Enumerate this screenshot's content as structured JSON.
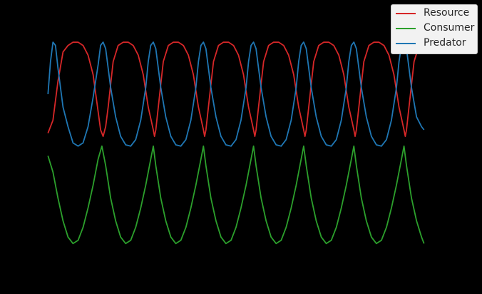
{
  "chart_data": {
    "type": "line",
    "title": "",
    "xlabel": "",
    "ylabel": "",
    "grid": false,
    "legend_position": "top-right",
    "xlim": [
      -30,
      3030
    ],
    "ylim": [
      -0.65,
      2.7
    ],
    "x_ticks": [
      0,
      500,
      1000,
      1500,
      2000,
      2500,
      3000
    ],
    "y_ticks": [
      -0.4,
      0.1,
      0.6,
      1.1,
      1.6,
      2.1,
      2.6
    ],
    "series": [
      {
        "name": "Resource",
        "color": "#d62728",
        "x": [
          0,
          40,
          80,
          120,
          160,
          200,
          240,
          280,
          320,
          360,
          420,
          440,
          460,
          480,
          520,
          560,
          600,
          640,
          680,
          720,
          760,
          800,
          840,
          850,
          860,
          880,
          920,
          960,
          1000,
          1040,
          1080,
          1120,
          1160,
          1200,
          1240,
          1250,
          1260,
          1280,
          1320,
          1360,
          1400,
          1440,
          1480,
          1520,
          1560,
          1600,
          1640,
          1650,
          1660,
          1680,
          1720,
          1760,
          1800,
          1840,
          1880,
          1920,
          1960,
          2000,
          2040,
          2050,
          2060,
          2080,
          2120,
          2160,
          2200,
          2240,
          2280,
          2320,
          2360,
          2400,
          2440,
          2450,
          2460,
          2480,
          2520,
          2560,
          2600,
          2640,
          2680,
          2720,
          2760,
          2800,
          2840,
          2850,
          2860,
          2880,
          2920,
          2960,
          3000
        ],
        "y": [
          1.2,
          1.4,
          2.0,
          2.45,
          2.55,
          2.6,
          2.6,
          2.55,
          2.4,
          2.1,
          1.25,
          1.15,
          1.3,
          1.6,
          2.3,
          2.55,
          2.6,
          2.6,
          2.55,
          2.4,
          2.1,
          1.6,
          1.25,
          1.15,
          1.25,
          1.6,
          2.3,
          2.55,
          2.6,
          2.6,
          2.55,
          2.4,
          2.1,
          1.6,
          1.25,
          1.15,
          1.25,
          1.6,
          2.3,
          2.55,
          2.6,
          2.6,
          2.55,
          2.4,
          2.1,
          1.6,
          1.25,
          1.15,
          1.25,
          1.6,
          2.3,
          2.55,
          2.6,
          2.6,
          2.55,
          2.4,
          2.1,
          1.6,
          1.25,
          1.15,
          1.25,
          1.6,
          2.3,
          2.55,
          2.6,
          2.6,
          2.55,
          2.4,
          2.1,
          1.6,
          1.25,
          1.15,
          1.25,
          1.6,
          2.3,
          2.55,
          2.6,
          2.6,
          2.55,
          2.4,
          2.1,
          1.6,
          1.25,
          1.15,
          1.25,
          1.6,
          2.3,
          2.55,
          2.6
        ]
      },
      {
        "name": "Consumer",
        "color": "#2ca02c",
        "x": [
          0,
          40,
          80,
          120,
          160,
          200,
          240,
          280,
          320,
          360,
          400,
          430,
          460,
          500,
          540,
          580,
          620,
          660,
          700,
          740,
          780,
          820,
          840,
          860,
          900,
          940,
          980,
          1020,
          1060,
          1100,
          1140,
          1180,
          1220,
          1240,
          1260,
          1300,
          1340,
          1380,
          1420,
          1460,
          1500,
          1540,
          1580,
          1620,
          1640,
          1660,
          1700,
          1740,
          1780,
          1820,
          1860,
          1900,
          1940,
          1980,
          2020,
          2040,
          2060,
          2100,
          2140,
          2180,
          2220,
          2260,
          2300,
          2340,
          2380,
          2420,
          2440,
          2460,
          2500,
          2540,
          2580,
          2620,
          2660,
          2700,
          2740,
          2780,
          2820,
          2840,
          2860,
          2900,
          2940,
          2980,
          3000
        ],
        "y": [
          0.85,
          0.6,
          0.2,
          -0.15,
          -0.4,
          -0.5,
          -0.45,
          -0.25,
          0.05,
          0.4,
          0.8,
          1.0,
          0.7,
          0.2,
          -0.15,
          -0.4,
          -0.5,
          -0.45,
          -0.25,
          0.05,
          0.4,
          0.8,
          1.0,
          0.7,
          0.2,
          -0.15,
          -0.4,
          -0.5,
          -0.45,
          -0.25,
          0.05,
          0.4,
          0.8,
          1.0,
          0.7,
          0.2,
          -0.15,
          -0.4,
          -0.5,
          -0.45,
          -0.25,
          0.05,
          0.4,
          0.8,
          1.0,
          0.7,
          0.2,
          -0.15,
          -0.4,
          -0.5,
          -0.45,
          -0.25,
          0.05,
          0.4,
          0.8,
          1.0,
          0.7,
          0.2,
          -0.15,
          -0.4,
          -0.5,
          -0.45,
          -0.25,
          0.05,
          0.4,
          0.8,
          1.0,
          0.7,
          0.2,
          -0.15,
          -0.4,
          -0.5,
          -0.45,
          -0.25,
          0.05,
          0.4,
          0.8,
          1.0,
          0.7,
          0.2,
          -0.15,
          -0.4,
          -0.5
        ]
      },
      {
        "name": "Predator",
        "color": "#1f77b4",
        "x": [
          0,
          20,
          40,
          60,
          80,
          120,
          160,
          200,
          240,
          280,
          320,
          360,
          400,
          420,
          440,
          460,
          480,
          500,
          540,
          580,
          620,
          660,
          700,
          740,
          780,
          800,
          820,
          840,
          860,
          880,
          900,
          940,
          980,
          1020,
          1060,
          1100,
          1140,
          1180,
          1200,
          1220,
          1240,
          1260,
          1280,
          1300,
          1340,
          1380,
          1420,
          1460,
          1500,
          1540,
          1580,
          1600,
          1620,
          1640,
          1660,
          1680,
          1700,
          1740,
          1780,
          1820,
          1860,
          1900,
          1940,
          1980,
          2000,
          2020,
          2040,
          2060,
          2080,
          2100,
          2140,
          2180,
          2220,
          2260,
          2300,
          2340,
          2380,
          2400,
          2420,
          2440,
          2460,
          2480,
          2500,
          2540,
          2580,
          2620,
          2660,
          2700,
          2740,
          2780,
          2800,
          2820,
          2840,
          2860,
          2880,
          2900,
          2940,
          2980,
          3000
        ],
        "y": [
          1.8,
          2.3,
          2.6,
          2.55,
          2.2,
          1.6,
          1.3,
          1.05,
          1.0,
          1.05,
          1.3,
          1.75,
          2.25,
          2.55,
          2.6,
          2.5,
          2.2,
          1.9,
          1.45,
          1.15,
          1.02,
          1.0,
          1.1,
          1.4,
          1.9,
          2.3,
          2.55,
          2.6,
          2.5,
          2.2,
          1.9,
          1.45,
          1.15,
          1.02,
          1.0,
          1.1,
          1.4,
          1.9,
          2.3,
          2.55,
          2.6,
          2.5,
          2.2,
          1.9,
          1.45,
          1.15,
          1.02,
          1.0,
          1.1,
          1.4,
          1.9,
          2.3,
          2.55,
          2.6,
          2.5,
          2.2,
          1.9,
          1.45,
          1.15,
          1.02,
          1.0,
          1.1,
          1.4,
          1.9,
          2.3,
          2.55,
          2.6,
          2.5,
          2.2,
          1.9,
          1.45,
          1.15,
          1.02,
          1.0,
          1.1,
          1.4,
          1.9,
          2.3,
          2.55,
          2.6,
          2.5,
          2.2,
          1.9,
          1.45,
          1.15,
          1.02,
          1.0,
          1.1,
          1.4,
          1.9,
          2.3,
          2.55,
          2.6,
          2.5,
          2.2,
          1.9,
          1.45,
          1.3,
          1.25
        ]
      }
    ]
  }
}
